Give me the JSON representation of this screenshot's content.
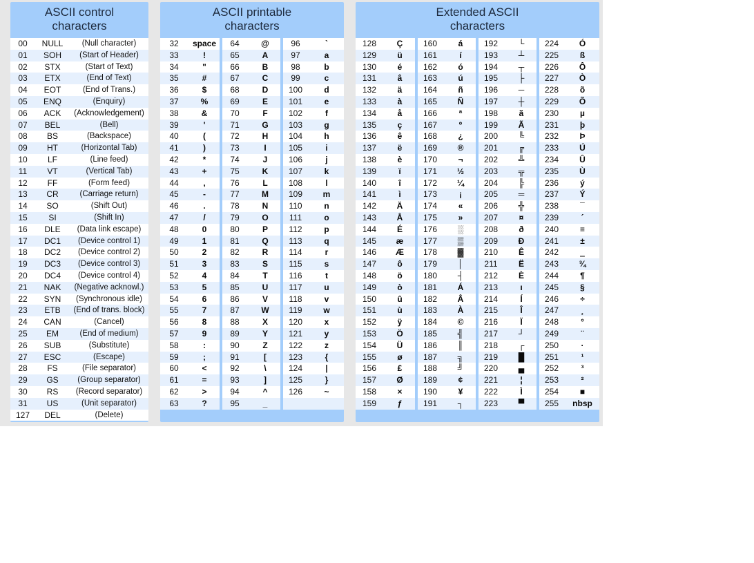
{
  "sections": {
    "control": {
      "title_line1": "ASCII control",
      "title_line2": "characters",
      "rows": [
        [
          "00",
          "NULL",
          "(Null character)"
        ],
        [
          "01",
          "SOH",
          "(Start of Header)"
        ],
        [
          "02",
          "STX",
          "(Start of Text)"
        ],
        [
          "03",
          "ETX",
          "(End of Text)"
        ],
        [
          "04",
          "EOT",
          "(End of Trans.)"
        ],
        [
          "05",
          "ENQ",
          "(Enquiry)"
        ],
        [
          "06",
          "ACK",
          "(Acknowledgement)"
        ],
        [
          "07",
          "BEL",
          "(Bell)"
        ],
        [
          "08",
          "BS",
          "(Backspace)"
        ],
        [
          "09",
          "HT",
          "(Horizontal Tab)"
        ],
        [
          "10",
          "LF",
          "(Line feed)"
        ],
        [
          "11",
          "VT",
          "(Vertical Tab)"
        ],
        [
          "12",
          "FF",
          "(Form feed)"
        ],
        [
          "13",
          "CR",
          "(Carriage return)"
        ],
        [
          "14",
          "SO",
          "(Shift Out)"
        ],
        [
          "15",
          "SI",
          "(Shift In)"
        ],
        [
          "16",
          "DLE",
          "(Data link escape)"
        ],
        [
          "17",
          "DC1",
          "(Device control 1)"
        ],
        [
          "18",
          "DC2",
          "(Device control 2)"
        ],
        [
          "19",
          "DC3",
          "(Device control 3)"
        ],
        [
          "20",
          "DC4",
          "(Device control 4)"
        ],
        [
          "21",
          "NAK",
          "(Negative acknowl.)"
        ],
        [
          "22",
          "SYN",
          "(Synchronous idle)"
        ],
        [
          "23",
          "ETB",
          "(End of trans. block)"
        ],
        [
          "24",
          "CAN",
          "(Cancel)"
        ],
        [
          "25",
          "EM",
          "(End of medium)"
        ],
        [
          "26",
          "SUB",
          "(Substitute)"
        ],
        [
          "27",
          "ESC",
          "(Escape)"
        ],
        [
          "28",
          "FS",
          "(File separator)"
        ],
        [
          "29",
          "GS",
          "(Group separator)"
        ],
        [
          "30",
          "RS",
          "(Record separator)"
        ],
        [
          "31",
          "US",
          "(Unit separator)"
        ],
        [
          "127",
          "DEL",
          "(Delete)"
        ]
      ]
    },
    "printable": {
      "title_line1": "ASCII printable",
      "title_line2": "characters",
      "columns": [
        [
          [
            "32",
            "space"
          ],
          [
            "33",
            "!"
          ],
          [
            "34",
            "\""
          ],
          [
            "35",
            "#"
          ],
          [
            "36",
            "$"
          ],
          [
            "37",
            "%"
          ],
          [
            "38",
            "&"
          ],
          [
            "39",
            "'"
          ],
          [
            "40",
            "("
          ],
          [
            "41",
            ")"
          ],
          [
            "42",
            "*"
          ],
          [
            "43",
            "+"
          ],
          [
            "44",
            ","
          ],
          [
            "45",
            "-"
          ],
          [
            "46",
            "."
          ],
          [
            "47",
            "/"
          ],
          [
            "48",
            "0"
          ],
          [
            "49",
            "1"
          ],
          [
            "50",
            "2"
          ],
          [
            "51",
            "3"
          ],
          [
            "52",
            "4"
          ],
          [
            "53",
            "5"
          ],
          [
            "54",
            "6"
          ],
          [
            "55",
            "7"
          ],
          [
            "56",
            "8"
          ],
          [
            "57",
            "9"
          ],
          [
            "58",
            ":"
          ],
          [
            "59",
            ";"
          ],
          [
            "60",
            "<"
          ],
          [
            "61",
            "="
          ],
          [
            "62",
            ">"
          ],
          [
            "63",
            "?"
          ]
        ],
        [
          [
            "64",
            "@"
          ],
          [
            "65",
            "A"
          ],
          [
            "66",
            "B"
          ],
          [
            "67",
            "C"
          ],
          [
            "68",
            "D"
          ],
          [
            "69",
            "E"
          ],
          [
            "70",
            "F"
          ],
          [
            "71",
            "G"
          ],
          [
            "72",
            "H"
          ],
          [
            "73",
            "I"
          ],
          [
            "74",
            "J"
          ],
          [
            "75",
            "K"
          ],
          [
            "76",
            "L"
          ],
          [
            "77",
            "M"
          ],
          [
            "78",
            "N"
          ],
          [
            "79",
            "O"
          ],
          [
            "80",
            "P"
          ],
          [
            "81",
            "Q"
          ],
          [
            "82",
            "R"
          ],
          [
            "83",
            "S"
          ],
          [
            "84",
            "T"
          ],
          [
            "85",
            "U"
          ],
          [
            "86",
            "V"
          ],
          [
            "87",
            "W"
          ],
          [
            "88",
            "X"
          ],
          [
            "89",
            "Y"
          ],
          [
            "90",
            "Z"
          ],
          [
            "91",
            "["
          ],
          [
            "92",
            "\\"
          ],
          [
            "93",
            "]"
          ],
          [
            "94",
            "^"
          ],
          [
            "95",
            "_"
          ]
        ],
        [
          [
            "96",
            "`"
          ],
          [
            "97",
            "a"
          ],
          [
            "98",
            "b"
          ],
          [
            "99",
            "c"
          ],
          [
            "100",
            "d"
          ],
          [
            "101",
            "e"
          ],
          [
            "102",
            "f"
          ],
          [
            "103",
            "g"
          ],
          [
            "104",
            "h"
          ],
          [
            "105",
            "i"
          ],
          [
            "106",
            "j"
          ],
          [
            "107",
            "k"
          ],
          [
            "108",
            "l"
          ],
          [
            "109",
            "m"
          ],
          [
            "110",
            "n"
          ],
          [
            "111",
            "o"
          ],
          [
            "112",
            "p"
          ],
          [
            "113",
            "q"
          ],
          [
            "114",
            "r"
          ],
          [
            "115",
            "s"
          ],
          [
            "116",
            "t"
          ],
          [
            "117",
            "u"
          ],
          [
            "118",
            "v"
          ],
          [
            "119",
            "w"
          ],
          [
            "120",
            "x"
          ],
          [
            "121",
            "y"
          ],
          [
            "122",
            "z"
          ],
          [
            "123",
            "{"
          ],
          [
            "124",
            "|"
          ],
          [
            "125",
            "}"
          ],
          [
            "126",
            "~"
          ],
          [
            "",
            ""
          ]
        ]
      ]
    },
    "extended": {
      "title_line1": "Extended ASCII",
      "title_line2": "characters",
      "columns": [
        [
          [
            "128",
            "Ç"
          ],
          [
            "129",
            "ü"
          ],
          [
            "130",
            "é"
          ],
          [
            "131",
            "â"
          ],
          [
            "132",
            "ä"
          ],
          [
            "133",
            "à"
          ],
          [
            "134",
            "å"
          ],
          [
            "135",
            "ç"
          ],
          [
            "136",
            "ê"
          ],
          [
            "137",
            "ë"
          ],
          [
            "138",
            "è"
          ],
          [
            "139",
            "ï"
          ],
          [
            "140",
            "î"
          ],
          [
            "141",
            "ì"
          ],
          [
            "142",
            "Ä"
          ],
          [
            "143",
            "Å"
          ],
          [
            "144",
            "É"
          ],
          [
            "145",
            "æ"
          ],
          [
            "146",
            "Æ"
          ],
          [
            "147",
            "ô"
          ],
          [
            "148",
            "ö"
          ],
          [
            "149",
            "ò"
          ],
          [
            "150",
            "û"
          ],
          [
            "151",
            "ù"
          ],
          [
            "152",
            "ÿ"
          ],
          [
            "153",
            "Ö"
          ],
          [
            "154",
            "Ü"
          ],
          [
            "155",
            "ø"
          ],
          [
            "156",
            "£"
          ],
          [
            "157",
            "Ø"
          ],
          [
            "158",
            "×"
          ],
          [
            "159",
            "ƒ"
          ]
        ],
        [
          [
            "160",
            "á"
          ],
          [
            "161",
            "í"
          ],
          [
            "162",
            "ó"
          ],
          [
            "163",
            "ú"
          ],
          [
            "164",
            "ñ"
          ],
          [
            "165",
            "Ñ"
          ],
          [
            "166",
            "ª"
          ],
          [
            "167",
            "º"
          ],
          [
            "168",
            "¿"
          ],
          [
            "169",
            "®"
          ],
          [
            "170",
            "¬"
          ],
          [
            "171",
            "½"
          ],
          [
            "172",
            "¼"
          ],
          [
            "173",
            "¡"
          ],
          [
            "174",
            "«"
          ],
          [
            "175",
            "»"
          ],
          [
            "176",
            "░"
          ],
          [
            "177",
            "▒"
          ],
          [
            "178",
            "▓"
          ],
          [
            "179",
            "│"
          ],
          [
            "180",
            "┤"
          ],
          [
            "181",
            "Á"
          ],
          [
            "182",
            "Â"
          ],
          [
            "183",
            "À"
          ],
          [
            "184",
            "©"
          ],
          [
            "185",
            "╣"
          ],
          [
            "186",
            "║"
          ],
          [
            "187",
            "╗"
          ],
          [
            "188",
            "╝"
          ],
          [
            "189",
            "¢"
          ],
          [
            "190",
            "¥"
          ],
          [
            "191",
            "┐"
          ]
        ],
        [
          [
            "192",
            "└"
          ],
          [
            "193",
            "┴"
          ],
          [
            "194",
            "┬"
          ],
          [
            "195",
            "├"
          ],
          [
            "196",
            "─"
          ],
          [
            "197",
            "┼"
          ],
          [
            "198",
            "ã"
          ],
          [
            "199",
            "Ã"
          ],
          [
            "200",
            "╚"
          ],
          [
            "201",
            "╔"
          ],
          [
            "202",
            "╩"
          ],
          [
            "203",
            "╦"
          ],
          [
            "204",
            "╠"
          ],
          [
            "205",
            "═"
          ],
          [
            "206",
            "╬"
          ],
          [
            "207",
            "¤"
          ],
          [
            "208",
            "ð"
          ],
          [
            "209",
            "Ð"
          ],
          [
            "210",
            "Ê"
          ],
          [
            "211",
            "Ë"
          ],
          [
            "212",
            "È"
          ],
          [
            "213",
            "ı"
          ],
          [
            "214",
            "Í"
          ],
          [
            "215",
            "Î"
          ],
          [
            "216",
            "Ï"
          ],
          [
            "217",
            "┘"
          ],
          [
            "218",
            "┌"
          ],
          [
            "219",
            "█"
          ],
          [
            "220",
            "▄"
          ],
          [
            "221",
            "¦"
          ],
          [
            "222",
            "Ì"
          ],
          [
            "223",
            "▀"
          ]
        ],
        [
          [
            "224",
            "Ó"
          ],
          [
            "225",
            "ß"
          ],
          [
            "226",
            "Ô"
          ],
          [
            "227",
            "Ò"
          ],
          [
            "228",
            "õ"
          ],
          [
            "229",
            "Õ"
          ],
          [
            "230",
            "µ"
          ],
          [
            "231",
            "þ"
          ],
          [
            "232",
            "Þ"
          ],
          [
            "233",
            "Ú"
          ],
          [
            "234",
            "Û"
          ],
          [
            "235",
            "Ù"
          ],
          [
            "236",
            "ý"
          ],
          [
            "237",
            "Ý"
          ],
          [
            "238",
            "¯"
          ],
          [
            "239",
            "´"
          ],
          [
            "240",
            "≡"
          ],
          [
            "241",
            "±"
          ],
          [
            "242",
            "‗"
          ],
          [
            "243",
            "¾"
          ],
          [
            "244",
            "¶"
          ],
          [
            "245",
            "§"
          ],
          [
            "246",
            "÷"
          ],
          [
            "247",
            "¸"
          ],
          [
            "248",
            "°"
          ],
          [
            "249",
            "¨"
          ],
          [
            "250",
            "·"
          ],
          [
            "251",
            "¹"
          ],
          [
            "252",
            "³"
          ],
          [
            "253",
            "²"
          ],
          [
            "254",
            "■"
          ],
          [
            "255",
            "nbsp"
          ]
        ]
      ]
    }
  }
}
